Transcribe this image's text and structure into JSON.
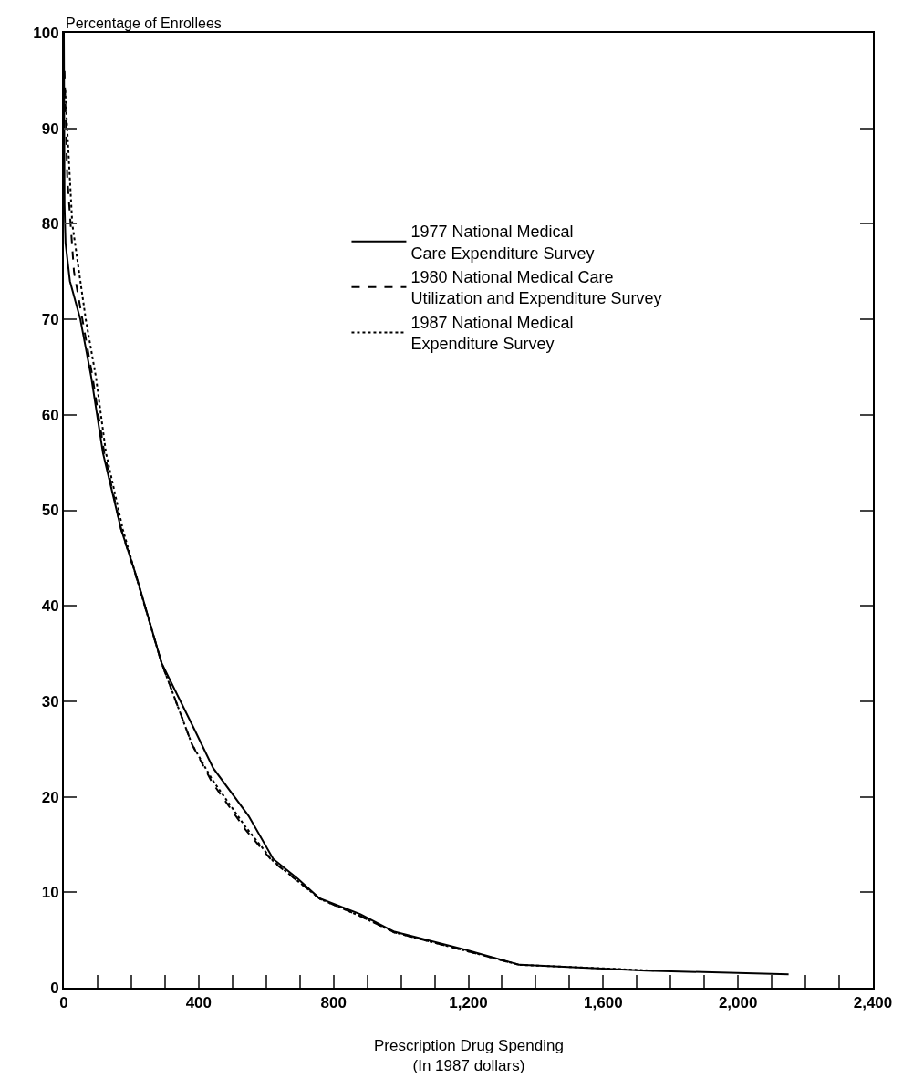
{
  "chart_data": {
    "type": "line",
    "ylabel": "Percentage of Enrollees",
    "xlabel": "Prescription Drug Spending\n(In 1987 dollars)",
    "xlim": [
      0,
      2400
    ],
    "xticks": [
      0,
      {
        "value": 100,
        "label": null
      },
      {
        "value": 200,
        "label": null
      },
      {
        "value": 300,
        "label": null
      },
      400,
      {
        "value": 500,
        "label": null
      },
      {
        "value": 600,
        "label": null
      },
      {
        "value": 700,
        "label": null
      },
      800,
      {
        "value": 900,
        "label": null
      },
      {
        "value": 1000,
        "label": null
      },
      {
        "value": 1100,
        "label": null
      },
      {
        "value": 1200,
        "label": "1,200"
      },
      {
        "value": 1300,
        "label": null
      },
      {
        "value": 1400,
        "label": null
      },
      {
        "value": 1500,
        "label": null
      },
      {
        "value": 1600,
        "label": "1,600"
      },
      {
        "value": 1700,
        "label": null
      },
      {
        "value": 1800,
        "label": null
      },
      {
        "value": 1900,
        "label": null
      },
      {
        "value": 2000,
        "label": "2,000"
      },
      {
        "value": 2100,
        "label": null
      },
      {
        "value": 2200,
        "label": null
      },
      {
        "value": 2300,
        "label": null
      },
      {
        "value": 2400,
        "label": "2,400"
      }
    ],
    "ylim": [
      0,
      100
    ],
    "yticks": [
      0,
      10,
      20,
      30,
      40,
      50,
      60,
      70,
      80,
      90,
      100
    ],
    "legend": "top right",
    "series": [
      {
        "name": "1977 National Medical\nCare Expenditure Survey",
        "color": "#000000",
        "line_style": "solid",
        "x": [
          0,
          2,
          5,
          18,
          49,
          81,
          116,
          170,
          216,
          290,
          388,
          443,
          548,
          621,
          695,
          757,
          880,
          978,
          1200,
          1352,
          1727,
          2150
        ],
        "values": [
          100,
          82,
          78,
          74,
          70,
          64,
          56,
          48,
          43,
          34,
          27,
          23,
          18,
          13.5,
          11.4,
          9.4,
          7.7,
          5.9,
          3.9,
          2.4,
          1.8,
          1.4
        ]
      },
      {
        "name": "1980 National Medical Care\nUtilization and Expenditure Survey",
        "color": "#000000",
        "line_style": "dashed",
        "x": [
          2,
          10,
          30,
          55,
          85,
          120,
          170,
          215,
          290,
          380,
          440,
          540,
          620,
          700,
          760,
          880,
          980,
          1200,
          1350
        ],
        "values": [
          96,
          85,
          75,
          70,
          64,
          56,
          48,
          43,
          34,
          25.5,
          21.5,
          16.5,
          13.2,
          11,
          9.3,
          7.5,
          5.8,
          3.8,
          2.4
        ]
      },
      {
        "name": "1987 National Medical\nExpenditure Survey",
        "color": "#000000",
        "line_style": "dotted",
        "x": [
          4,
          10,
          25,
          45,
          65,
          95,
          125,
          175,
          215,
          290,
          380,
          440,
          540,
          620,
          700,
          760,
          880,
          980,
          1200,
          1350,
          1750
        ],
        "values": [
          94,
          90,
          80,
          75,
          70,
          64,
          56,
          48,
          43,
          34,
          25.5,
          21.8,
          16.8,
          13.3,
          11,
          9.3,
          7.5,
          5.8,
          3.8,
          2.4,
          1.8
        ]
      }
    ]
  }
}
